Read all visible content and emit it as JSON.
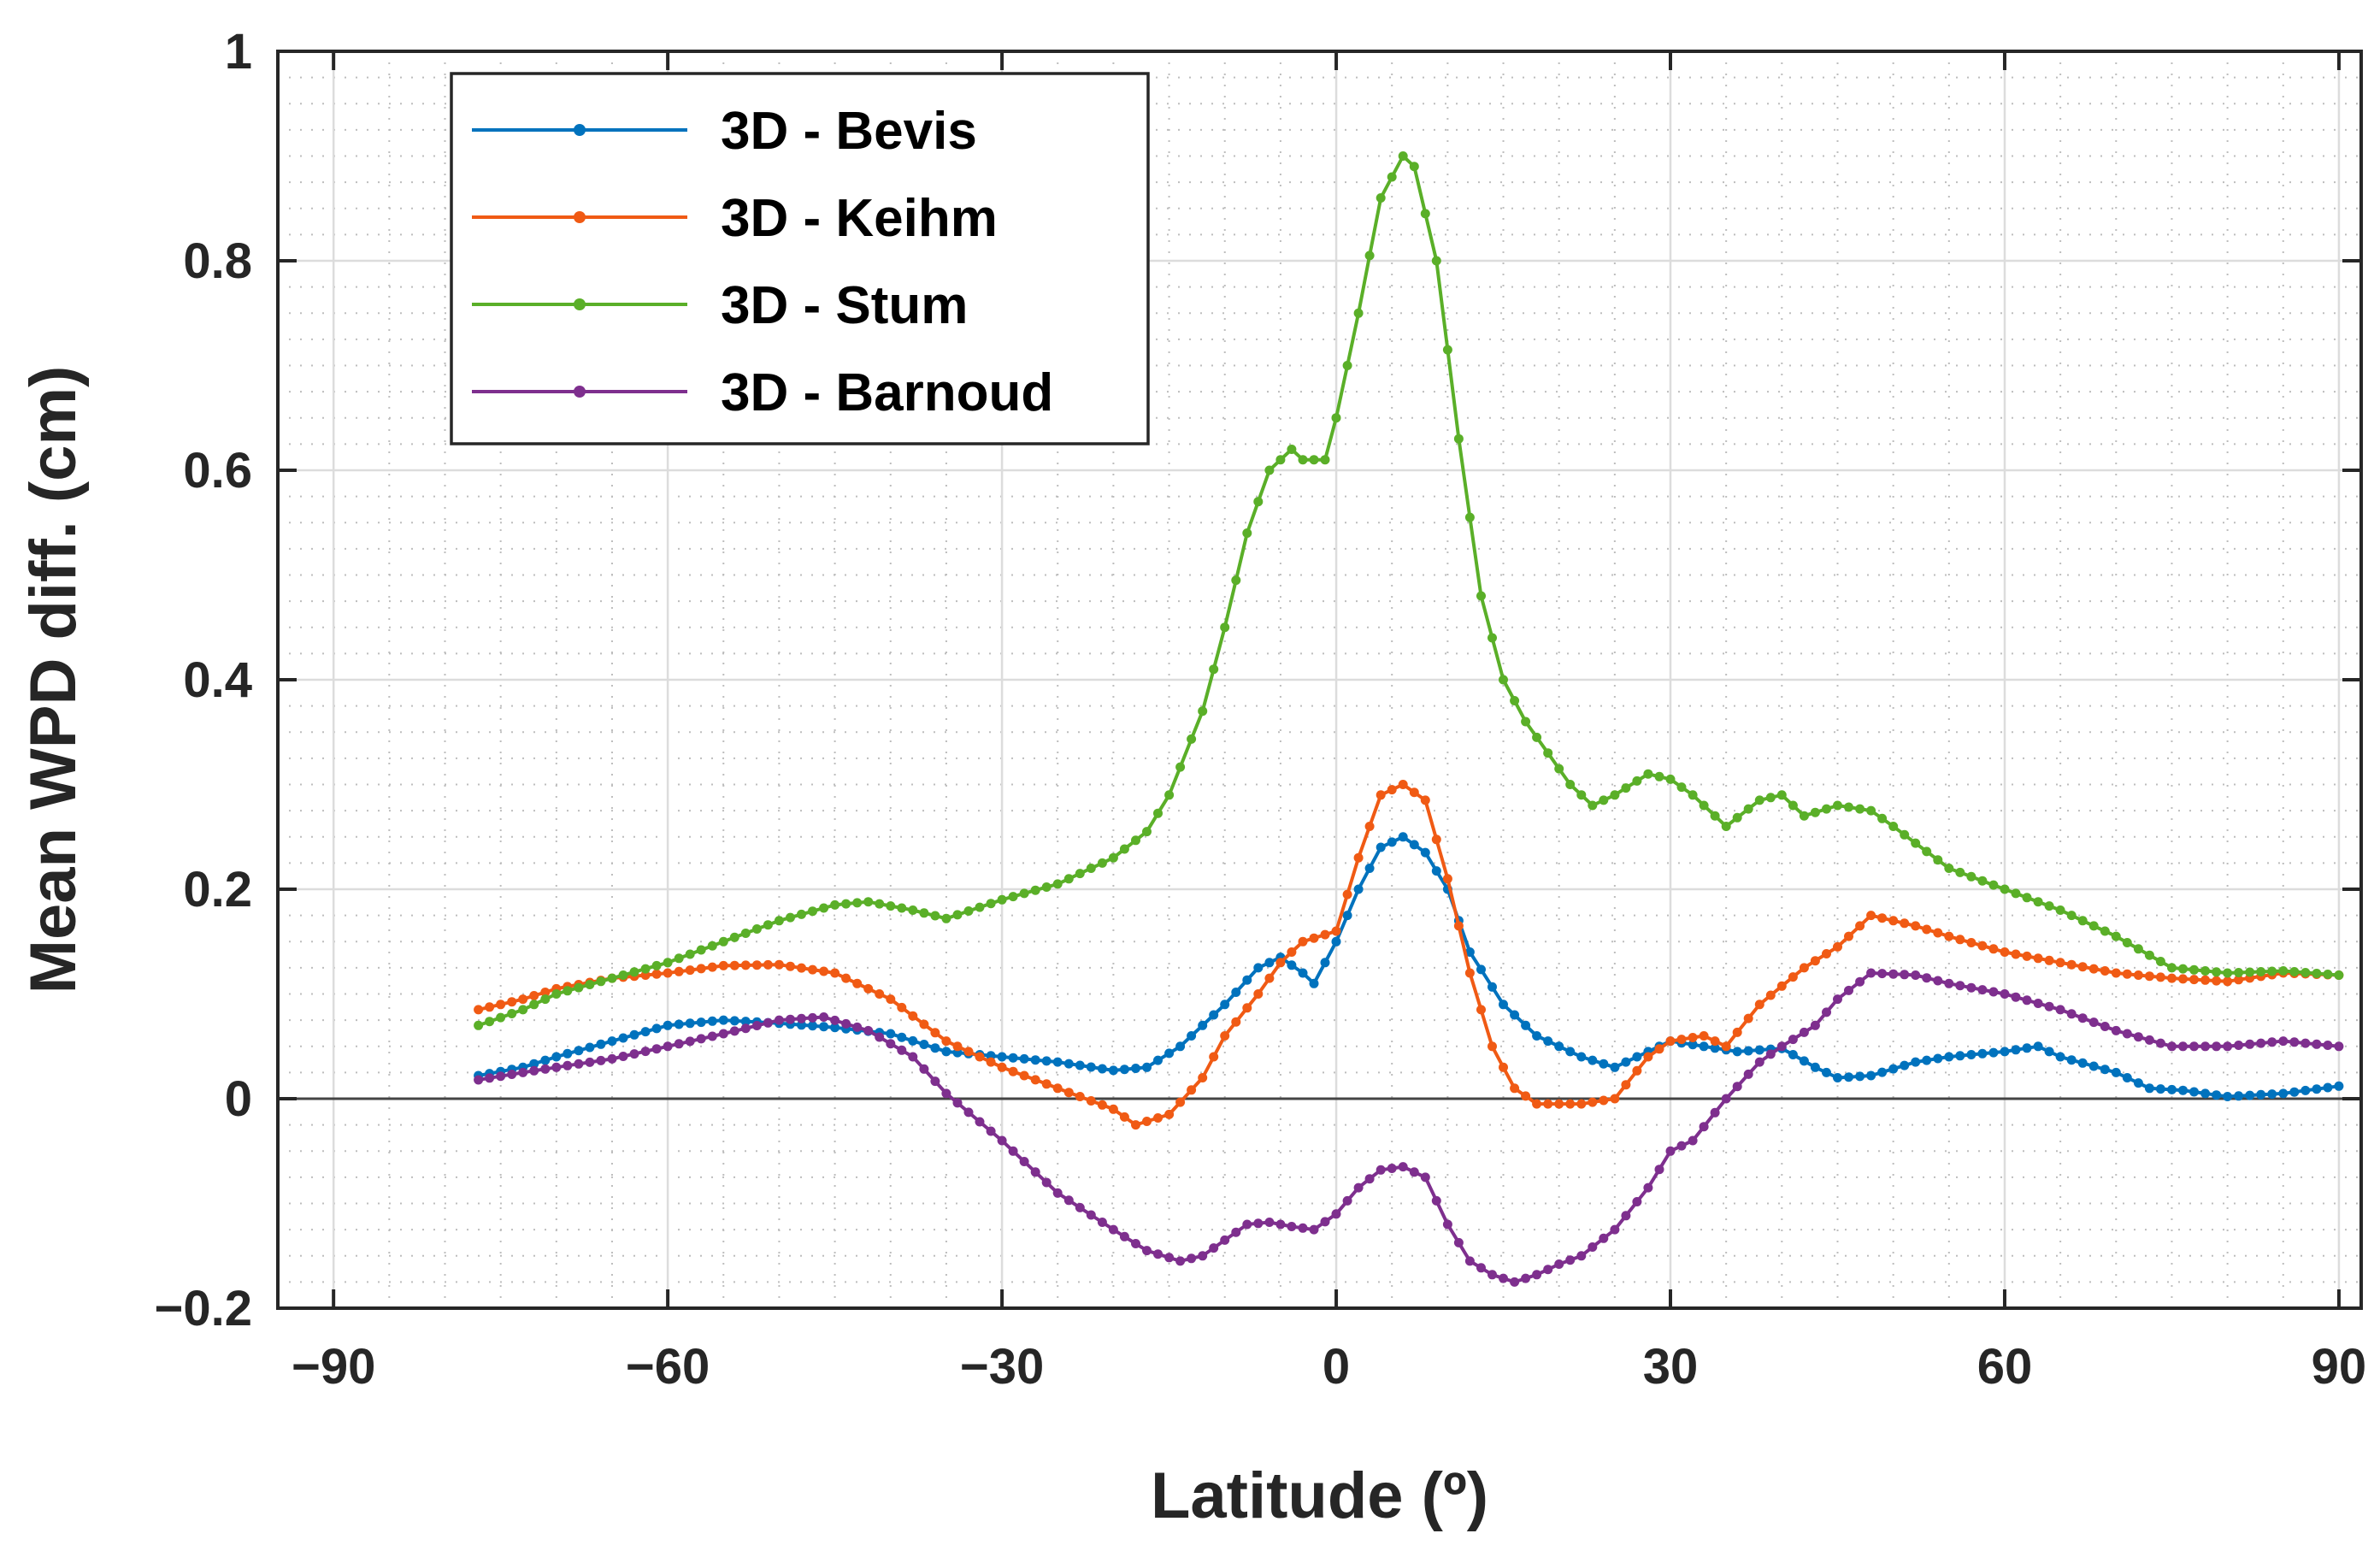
{
  "chart_data": {
    "type": "line",
    "xlabel": "Latitude (º)",
    "ylabel": "Mean WPD diff. (cm)",
    "xlim": [
      -95,
      92
    ],
    "ylim": [
      -0.2,
      1.0
    ],
    "x_ticks": [
      -90,
      -60,
      -30,
      0,
      30,
      60,
      90
    ],
    "x_tick_labels": [
      "−90",
      "−60",
      "−30",
      "0",
      "30",
      "60",
      "90"
    ],
    "y_ticks": [
      -0.2,
      0,
      0.2,
      0.4,
      0.6,
      0.8,
      1.0
    ],
    "y_tick_labels": [
      "−0.2",
      "0",
      "0.2",
      "0.4",
      "0.6",
      "0.8",
      "1"
    ],
    "grid": true,
    "minor_grid": true,
    "zero_line": true,
    "legend_position": "top-left",
    "series": [
      {
        "name": "3D - Bevis",
        "color": "#0072BD",
        "x": [
          -77,
          -73,
          -70,
          -65,
          -60,
          -55,
          -50,
          -45,
          -40,
          -35,
          -30,
          -25,
          -20,
          -17,
          -14,
          -10,
          -7,
          -5,
          -3,
          -2,
          0,
          2,
          4,
          6,
          8,
          10,
          12,
          15,
          18,
          22,
          25,
          28,
          30,
          33,
          36,
          40,
          43,
          45,
          48,
          52,
          55,
          60,
          63,
          65,
          70,
          73,
          76,
          80,
          85,
          90
        ],
        "y": [
          0.022,
          0.03,
          0.04,
          0.055,
          0.07,
          0.075,
          0.072,
          0.068,
          0.062,
          0.045,
          0.04,
          0.035,
          0.027,
          0.03,
          0.05,
          0.09,
          0.125,
          0.135,
          0.12,
          0.11,
          0.15,
          0.2,
          0.24,
          0.25,
          0.235,
          0.2,
          0.14,
          0.09,
          0.06,
          0.04,
          0.03,
          0.045,
          0.055,
          0.05,
          0.045,
          0.048,
          0.03,
          0.02,
          0.022,
          0.035,
          0.04,
          0.045,
          0.05,
          0.04,
          0.025,
          0.01,
          0.008,
          0.002,
          0.005,
          0.012
        ]
      },
      {
        "name": "3D - Keihm",
        "color": "#F05A14",
        "x": [
          -77,
          -73,
          -70,
          -65,
          -60,
          -55,
          -50,
          -45,
          -40,
          -35,
          -30,
          -25,
          -20,
          -18,
          -15,
          -12,
          -10,
          -7,
          -5,
          -3,
          0,
          2,
          4,
          6,
          8,
          10,
          12,
          14,
          16,
          18,
          20,
          22,
          25,
          28,
          30,
          33,
          35,
          38,
          42,
          45,
          48,
          52,
          55,
          60,
          65,
          70,
          75,
          80,
          85,
          90
        ],
        "y": [
          0.085,
          0.095,
          0.105,
          0.115,
          0.12,
          0.127,
          0.128,
          0.12,
          0.095,
          0.055,
          0.03,
          0.01,
          -0.01,
          -0.025,
          -0.015,
          0.02,
          0.06,
          0.1,
          0.13,
          0.15,
          0.16,
          0.23,
          0.29,
          0.3,
          0.285,
          0.21,
          0.12,
          0.05,
          0.01,
          -0.005,
          -0.005,
          -0.005,
          0.0,
          0.04,
          0.055,
          0.06,
          0.05,
          0.09,
          0.125,
          0.145,
          0.175,
          0.165,
          0.155,
          0.14,
          0.13,
          0.12,
          0.115,
          0.112,
          0.12,
          0.118
        ]
      },
      {
        "name": "3D - Stum",
        "color": "#5AAF28",
        "x": [
          -77,
          -73,
          -70,
          -65,
          -60,
          -55,
          -50,
          -45,
          -42,
          -38,
          -35,
          -30,
          -25,
          -20,
          -17,
          -15,
          -12,
          -10,
          -8,
          -6,
          -4,
          -3,
          -1,
          0,
          2,
          4,
          6,
          7,
          9,
          11,
          13,
          15,
          17,
          19,
          21,
          23,
          25,
          28,
          30,
          32,
          35,
          38,
          40,
          42,
          45,
          48,
          50,
          55,
          60,
          65,
          70,
          75,
          80,
          85,
          90
        ],
        "y": [
          0.07,
          0.085,
          0.1,
          0.115,
          0.13,
          0.15,
          0.17,
          0.185,
          0.188,
          0.18,
          0.172,
          0.19,
          0.205,
          0.23,
          0.255,
          0.29,
          0.37,
          0.45,
          0.54,
          0.6,
          0.62,
          0.61,
          0.61,
          0.65,
          0.75,
          0.86,
          0.9,
          0.89,
          0.8,
          0.63,
          0.48,
          0.4,
          0.36,
          0.33,
          0.3,
          0.28,
          0.29,
          0.31,
          0.305,
          0.29,
          0.26,
          0.285,
          0.29,
          0.27,
          0.28,
          0.275,
          0.26,
          0.22,
          0.2,
          0.18,
          0.155,
          0.125,
          0.12,
          0.122,
          0.118
        ]
      },
      {
        "name": "3D - Barnoud",
        "color": "#7E2F8E",
        "x": [
          -77,
          -73,
          -70,
          -65,
          -60,
          -55,
          -50,
          -46,
          -42,
          -38,
          -35,
          -30,
          -25,
          -20,
          -17,
          -14,
          -12,
          -10,
          -8,
          -6,
          -4,
          -2,
          0,
          2,
          4,
          6,
          8,
          10,
          12,
          14,
          16,
          18,
          20,
          22,
          25,
          28,
          30,
          32,
          35,
          38,
          40,
          43,
          45,
          48,
          52,
          55,
          60,
          65,
          70,
          75,
          80,
          85,
          90
        ],
        "y": [
          0.018,
          0.025,
          0.03,
          0.038,
          0.05,
          0.062,
          0.075,
          0.078,
          0.065,
          0.04,
          0.005,
          -0.04,
          -0.09,
          -0.125,
          -0.145,
          -0.155,
          -0.15,
          -0.135,
          -0.12,
          -0.118,
          -0.122,
          -0.125,
          -0.11,
          -0.085,
          -0.068,
          -0.065,
          -0.075,
          -0.12,
          -0.155,
          -0.168,
          -0.175,
          -0.168,
          -0.158,
          -0.15,
          -0.125,
          -0.085,
          -0.05,
          -0.04,
          0.0,
          0.035,
          0.05,
          0.07,
          0.095,
          0.12,
          0.118,
          0.11,
          0.1,
          0.085,
          0.065,
          0.05,
          0.05,
          0.055,
          0.05
        ]
      }
    ]
  }
}
